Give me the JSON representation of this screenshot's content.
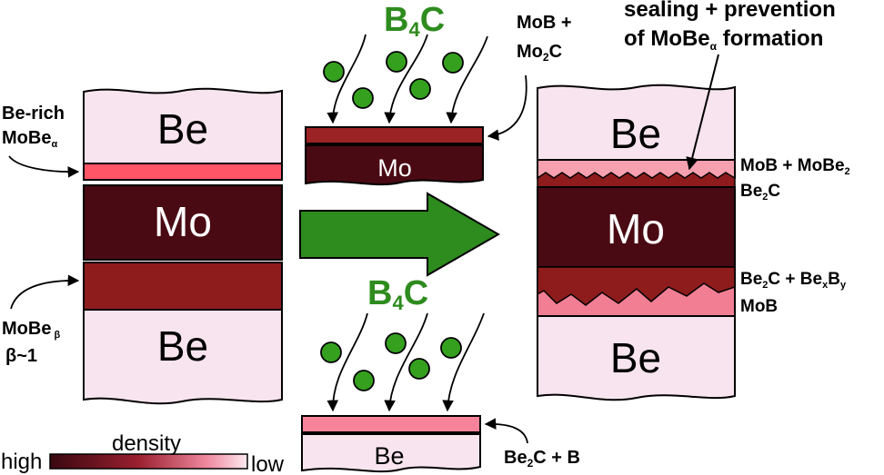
{
  "colors": {
    "be": "#f8e4ee",
    "mo": "#4a0a14",
    "mobe_beta": "#8e1c1c",
    "be_rich": "#ff5566",
    "b4c_layer_mo": "#9b2225",
    "b4c_layer_be": "#f7839a",
    "mob_mobe2": "#f7a0b0",
    "be2c_becbx": "#8e1c1c",
    "mob_bottom": "#f27e94",
    "green": "#2e8b1e",
    "particle": "#34a01e"
  },
  "left_stack": {
    "be_top": "Be",
    "mo": "Mo",
    "be_bottom": "Be",
    "label_be_rich_line1": "Be-rich",
    "label_be_rich_line2_main": "MoBe",
    "label_be_rich_line2_sub": "α",
    "label_mobe_line1_main": "MoBe",
    "label_mobe_line1_sub": "β",
    "label_mobe_line2": "β~1"
  },
  "top_middle": {
    "b4c_main": "B",
    "b4c_sub": "4",
    "b4c_end": "C",
    "mo": "Mo",
    "label_line1": "MoB +",
    "label_line2_a": "Mo",
    "label_line2_sub": "2",
    "label_line2_b": "C"
  },
  "bottom_middle": {
    "b4c_main": "B",
    "b4c_sub": "4",
    "b4c_end": "C",
    "be": "Be",
    "label_a": "Be",
    "label_sub": "2",
    "label_b": "C + B"
  },
  "right_stack": {
    "be_top": "Be",
    "mo": "Mo",
    "be_bottom": "Be",
    "title_line1": "sealing + prevention",
    "title_line2_a": "of MoBe",
    "title_line2_sub": "α",
    "title_line2_b": " formation",
    "label_mob_mobe2_a": "MoB + MoBe",
    "label_mob_mobe2_sub": "2",
    "label_be2c_a": "Be",
    "label_be2c_sub": "2",
    "label_be2c_b": "C",
    "label_be2c_bexby_a": "Be",
    "label_be2c_bexby_sub1": "2",
    "label_be2c_bexby_b": "C + Be",
    "label_be2c_bexby_sub2": "x",
    "label_be2c_bexby_c": "B",
    "label_be2c_bexby_sub3": "y",
    "label_mob": "MoB"
  },
  "legend": {
    "title": "density",
    "high": "high",
    "low": "low"
  }
}
